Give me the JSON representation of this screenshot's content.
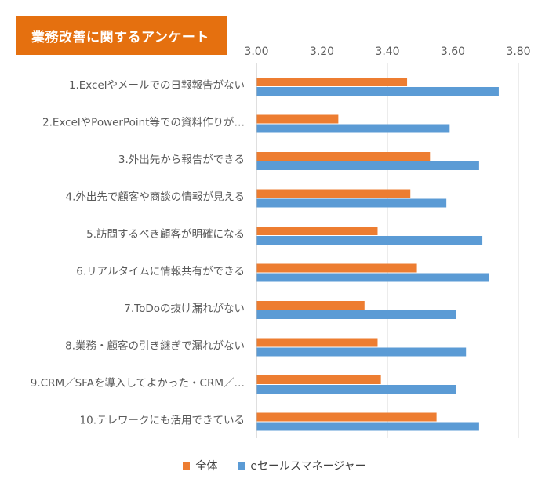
{
  "title": "業務改善に関するアンケート",
  "colors": {
    "all": "#ed7d31",
    "esales": "#5b9bd5",
    "grid": "#d9d9d9",
    "text": "#595959"
  },
  "chart_data": {
    "type": "bar",
    "orientation": "horizontal",
    "xlim": [
      3.0,
      3.8
    ],
    "ticks": [
      "3.00",
      "3.20",
      "3.40",
      "3.60",
      "3.80"
    ],
    "tick_values": [
      3.0,
      3.2,
      3.4,
      3.6,
      3.8
    ],
    "grid": true,
    "legend_position": "bottom",
    "categories": [
      "1.Excelやメールでの日報報告がない",
      "2.ExcelやPowerPoint等での資料作りが…",
      "3.外出先から報告ができる",
      "4.外出先で顧客や商談の情報が見える",
      "5.訪問するべき顧客が明確になる",
      "6.リアルタイムに情報共有ができる",
      "7.ToDoの抜け漏れがない",
      "8.業務・顧客の引き継ぎで漏れがない",
      "9.CRM／SFAを導入してよかった・CRM／…",
      "10.テレワークにも活用できている"
    ],
    "series": [
      {
        "name": "全体",
        "color": "#ed7d31",
        "values": [
          3.46,
          3.25,
          3.53,
          3.47,
          3.37,
          3.49,
          3.33,
          3.37,
          3.38,
          3.55
        ]
      },
      {
        "name": "eセールスマネージャー",
        "color": "#5b9bd5",
        "values": [
          3.74,
          3.59,
          3.68,
          3.58,
          3.69,
          3.71,
          3.61,
          3.64,
          3.61,
          3.68
        ]
      }
    ]
  }
}
